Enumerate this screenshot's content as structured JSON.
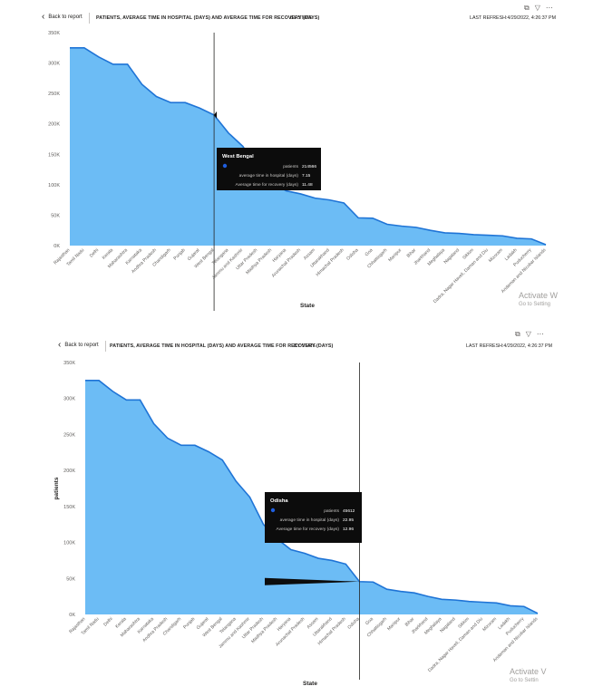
{
  "panels": [
    {
      "back_label": "Back to report",
      "title": "PATIENTS, AVERAGE TIME IN HOSPITAL (DAYS) AND AVERAGE TIME FOR RECOVERY (DAYS)",
      "by_label": "BY STATE",
      "refresh": "LAST REFRESH:4/29/2022, 4:26:37 PM",
      "icons": [
        "copy-icon",
        "filter-icon",
        "more-icon"
      ],
      "ylabel": "",
      "xlabel": "State",
      "tooltip": {
        "title": "West Bengal",
        "rows": [
          {
            "label": "patients",
            "value": "214566"
          },
          {
            "label": "average time in hospital (days)",
            "value": "7.15"
          },
          {
            "label": "Average time for recovery (days)",
            "value": "11.48"
          }
        ]
      },
      "hover_category": "West Bengal",
      "watermark": "Activate W",
      "watermark_sub": "Go to Setting"
    },
    {
      "back_label": "Back to report",
      "title": "PATIENTS, AVERAGE TIME IN HOSPITAL (DAYS) AND AVERAGE TIME FOR RECOVERY (DAYS)",
      "by_label": "BY STATE",
      "refresh": "LAST REFRESH:4/29/2022, 4:26:37 PM",
      "icons": [
        "copy-icon",
        "filter-icon",
        "more-icon"
      ],
      "ylabel": "patients",
      "xlabel": "State",
      "tooltip": {
        "title": "Odisha",
        "rows": [
          {
            "label": "patients",
            "value": "45612"
          },
          {
            "label": "average time in hospital (days)",
            "value": "22.95"
          },
          {
            "label": "Average time for recovery (days)",
            "value": "12.96"
          }
        ]
      },
      "hover_category": "Odisha",
      "watermark": "Activate V",
      "watermark_sub": "Go to Settin"
    }
  ],
  "colors": {
    "area_fill": "#6cbcf5",
    "area_line": "#1f74d6",
    "tooltip_bg": "#0c0c0c",
    "tooltip_dot": "#1f5fe0"
  },
  "chart_data": {
    "type": "area",
    "categories": [
      "Rajasthan",
      "Tamil Nadu",
      "Delhi",
      "Kerala",
      "Maharashtra",
      "Karnataka",
      "Andhra Pradesh",
      "Chandigarh",
      "Punjab",
      "Gujarat",
      "West Bengal",
      "Telangana",
      "Jammu and Kashmir",
      "Uttar Pradesh",
      "Madhya Pradesh",
      "Haryana",
      "Arunachal Pradesh",
      "Assam",
      "Uttarakhand",
      "Himachal Pradesh",
      "Odisha",
      "Goa",
      "Chhattisgarh",
      "Manipur",
      "Bihar",
      "Jharkhand",
      "Meghalaya",
      "Nagaland",
      "Sikkim",
      "Dadra, Nagar Haveli, Daman and Diu",
      "Mizoram",
      "Ladakh",
      "Puducherry",
      "Andaman and Nicobar Islands"
    ],
    "series": [
      {
        "name": "patients",
        "values": [
          325000,
          325000,
          310000,
          298000,
          298000,
          265000,
          245000,
          235000,
          235000,
          226000,
          214566,
          185000,
          163000,
          125000,
          105000,
          90000,
          85000,
          78000,
          75000,
          70000,
          45612,
          45000,
          35000,
          32000,
          30000,
          25000,
          21000,
          20000,
          18000,
          17000,
          16000,
          12000,
          11000,
          1500
        ]
      }
    ],
    "yticks": [
      "0K",
      "50K",
      "100K",
      "150K",
      "200K",
      "250K",
      "300K",
      "350K"
    ],
    "ylim": [
      0,
      350000
    ],
    "xlabel": "State",
    "grid": false,
    "legend": "none"
  }
}
